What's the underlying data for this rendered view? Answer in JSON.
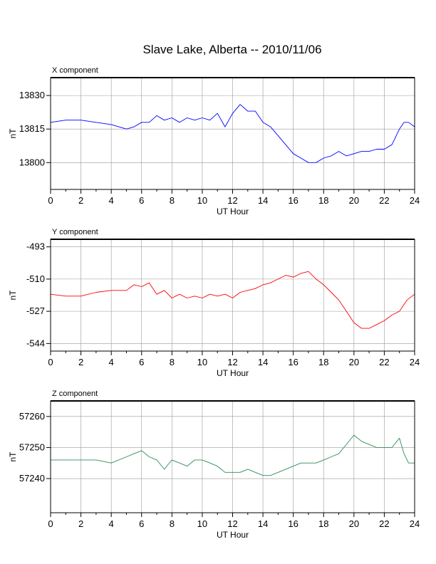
{
  "chart_data": {
    "title": "Slave Lake, Alberta -- 2010/11/06",
    "type": "line",
    "panels": [
      {
        "type": "line",
        "label": "X component",
        "ylabel": "nT",
        "xlabel": "UT Hour",
        "xlim": [
          0,
          24
        ],
        "xticks": [
          0,
          2,
          4,
          6,
          8,
          10,
          12,
          14,
          16,
          18,
          20,
          22,
          24
        ],
        "ylim": [
          13788,
          13838
        ],
        "yticks": [
          13800,
          13815,
          13830
        ],
        "grid": true,
        "color": "#0000ff",
        "x": [
          0,
          1,
          2,
          3,
          4,
          5,
          5.5,
          6,
          6.5,
          7,
          7.5,
          8,
          8.5,
          9,
          9.5,
          10,
          10.5,
          11,
          11.5,
          12,
          12.5,
          13,
          13.5,
          14,
          14.5,
          15,
          15.5,
          16,
          16.5,
          17,
          17.5,
          18,
          18.5,
          19,
          19.5,
          20,
          20.5,
          21,
          21.5,
          22,
          22.5,
          23,
          23.3,
          23.6,
          24
        ],
        "values": [
          13818,
          13819,
          13819,
          13818,
          13817,
          13815,
          13816,
          13818,
          13818,
          13821,
          13819,
          13820,
          13818,
          13820,
          13819,
          13820,
          13819,
          13822,
          13816,
          13822,
          13826,
          13823,
          13823,
          13818,
          13816,
          13812,
          13808,
          13804,
          13802,
          13800,
          13800,
          13802,
          13803,
          13805,
          13803,
          13804,
          13805,
          13805,
          13806,
          13806,
          13808,
          13815,
          13818,
          13818,
          13816
        ]
      },
      {
        "type": "line",
        "label": "Y component",
        "ylabel": "nT",
        "xlabel": "UT Hour",
        "xlim": [
          0,
          24
        ],
        "xticks": [
          0,
          2,
          4,
          6,
          8,
          10,
          12,
          14,
          16,
          18,
          20,
          22,
          24
        ],
        "ylim": [
          -548,
          -489
        ],
        "yticks": [
          -493,
          -510,
          -527,
          -544
        ],
        "grid": true,
        "color": "#ff0000",
        "x": [
          0,
          1,
          2,
          3,
          4,
          5,
          5.5,
          6,
          6.5,
          7,
          7.5,
          8,
          8.5,
          9,
          9.5,
          10,
          10.5,
          11,
          11.5,
          12,
          12.5,
          13,
          13.5,
          14,
          14.5,
          15,
          15.5,
          16,
          16.5,
          17,
          17.5,
          18,
          18.5,
          19,
          19.5,
          20,
          20.5,
          21,
          21.5,
          22,
          22.5,
          23,
          23.5,
          24
        ],
        "values": [
          -518,
          -519,
          -519,
          -517,
          -516,
          -516,
          -513,
          -514,
          -512,
          -518,
          -516,
          -520,
          -518,
          -520,
          -519,
          -520,
          -518,
          -519,
          -518,
          -520,
          -517,
          -516,
          -515,
          -513,
          -512,
          -510,
          -508,
          -509,
          -507,
          -506,
          -510,
          -513,
          -517,
          -521,
          -527,
          -533,
          -536,
          -536,
          -534,
          -532,
          -529,
          -527,
          -521,
          -518
        ]
      },
      {
        "type": "line",
        "label": "Z component",
        "ylabel": "nT",
        "xlabel": "UT Hour",
        "xlim": [
          0,
          24
        ],
        "xticks": [
          0,
          2,
          4,
          6,
          8,
          10,
          12,
          14,
          16,
          18,
          20,
          22,
          24
        ],
        "ylim": [
          57229,
          57265
        ],
        "yticks": [
          57240,
          57250,
          57260
        ],
        "grid": true,
        "color": "#2e8b57",
        "x": [
          0,
          1,
          2,
          3,
          4,
          5,
          5.5,
          6,
          6.5,
          7,
          7.5,
          8,
          8.5,
          9,
          9.5,
          10,
          10.5,
          11,
          11.5,
          12,
          12.5,
          13,
          13.5,
          14,
          14.5,
          15,
          15.5,
          16,
          16.5,
          17,
          17.5,
          18,
          18.5,
          19,
          19.5,
          20,
          20.5,
          21,
          21.5,
          22,
          22.5,
          23,
          23.3,
          23.6,
          24
        ],
        "values": [
          57246,
          57246,
          57246,
          57246,
          57245,
          57247,
          57248,
          57249,
          57247,
          57246,
          57243,
          57246,
          57245,
          57244,
          57246,
          57246,
          57245,
          57244,
          57242,
          57242,
          57242,
          57243,
          57242,
          57241,
          57241,
          57242,
          57243,
          57244,
          57245,
          57245,
          57245,
          57246,
          57247,
          57248,
          57251,
          57254,
          57252,
          57251,
          57250,
          57250,
          57250,
          57253,
          57248,
          57245,
          57245
        ]
      }
    ]
  }
}
